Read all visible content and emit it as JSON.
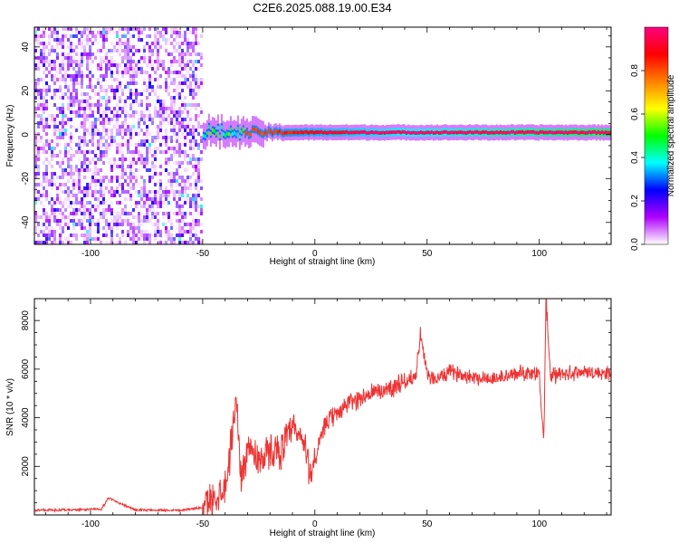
{
  "figure": {
    "title": "C2E6.2025.088.19.00.E34"
  },
  "chart_data": [
    {
      "type": "heatmap",
      "xlabel": "Height of straight line (km)",
      "ylabel": "Frequency (Hz)",
      "xlim": [
        -125,
        132
      ],
      "ylim": [
        -50,
        49
      ],
      "xticks": [
        -100,
        -50,
        0,
        50,
        100
      ],
      "yticks": [
        -40,
        -20,
        0,
        20,
        40
      ],
      "colorbar": {
        "label": "Normalized spectral amplitude",
        "range": [
          0,
          1
        ],
        "ticks": [
          "0.0",
          "0.2",
          "0.4",
          "0.6",
          "0.8"
        ],
        "tick_values": [
          0,
          0.2,
          0.4,
          0.6,
          0.8
        ],
        "colors": [
          "#ffffff",
          "#b000ff",
          "#0000ff",
          "#00ffff",
          "#00ff00",
          "#ffff00",
          "#ff8000",
          "#ff0000",
          "#ff0080"
        ]
      },
      "regions": [
        {
          "x_range": [
            -125,
            -50
          ],
          "content": "broadband noise",
          "amplitude": [
            0.0,
            0.25
          ],
          "f_range": [
            -50,
            49
          ]
        },
        {
          "x_range": [
            -50,
            132
          ],
          "content": "narrow line near 0 Hz",
          "center_hz": 1,
          "amplitude": [
            0.5,
            1.0
          ]
        }
      ]
    },
    {
      "type": "line",
      "xlabel": "Height of straight line (km)",
      "ylabel": "SNR (10 * v/v)",
      "xlim": [
        -125,
        132
      ],
      "ylim": [
        0,
        8900
      ],
      "xticks": [
        -100,
        -50,
        0,
        50,
        100
      ],
      "yticks": [
        2000,
        4000,
        6000,
        8000
      ],
      "series": [
        {
          "color": "#ee3333",
          "x": [
            -125,
            -110,
            -95,
            -92,
            -80,
            -60,
            -50,
            -45,
            -40,
            -38,
            -35,
            -33,
            -30,
            -28,
            -25,
            -20,
            -15,
            -10,
            -5,
            -2,
            0,
            5,
            10,
            15,
            20,
            25,
            30,
            35,
            40,
            45,
            47,
            50,
            55,
            60,
            70,
            80,
            90,
            95,
            100,
            102,
            103,
            105,
            110,
            120,
            132
          ],
          "y": [
            200,
            200,
            250,
            700,
            200,
            200,
            300,
            700,
            1200,
            2400,
            4900,
            1500,
            2800,
            2600,
            2300,
            2600,
            2700,
            3500,
            3000,
            1700,
            2300,
            3800,
            4200,
            4600,
            4800,
            5000,
            5100,
            5300,
            5500,
            5700,
            7500,
            5700,
            5600,
            5900,
            5700,
            5600,
            5800,
            5900,
            5800,
            2900,
            8900,
            5700,
            5800,
            5900,
            5800
          ]
        }
      ]
    }
  ]
}
